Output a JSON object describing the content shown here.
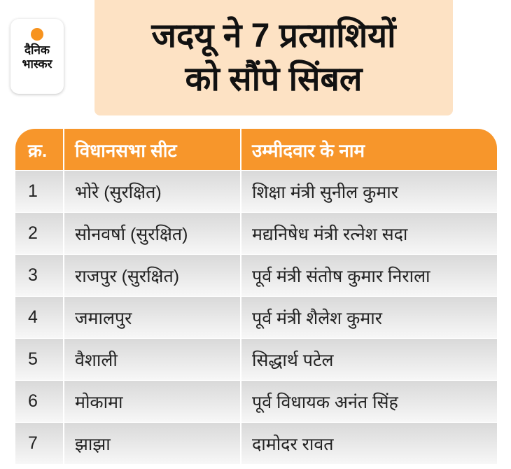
{
  "logo": {
    "line1": "दैनिक",
    "line2": "भास्कर"
  },
  "title": {
    "line1": "जदयू ने 7 प्रत्याशियों",
    "line2": "को सौंपे सिंबल"
  },
  "table": {
    "headers": [
      "क्र.",
      "विधानसभा सीट",
      "उम्मीदवार के नाम"
    ],
    "rows": [
      [
        "1",
        "भोरे (सुरक्षित)",
        "शिक्षा मंत्री सुनील कुमार"
      ],
      [
        "2",
        "सोनवर्षा (सुरक्षित)",
        "मद्यनिषेध मंत्री रत्नेश सदा"
      ],
      [
        "3",
        "राजपुर (सुरक्षित)",
        "पूर्व मंत्री संतोष कुमार निराला"
      ],
      [
        "4",
        "जमालपुर",
        "पूर्व मंत्री शैलेश कुमार"
      ],
      [
        "5",
        "वैशाली",
        "सिद्धार्थ पटेल"
      ],
      [
        "6",
        "मोकामा",
        "पूर्व विधायक अनंत सिंह"
      ],
      [
        "7",
        "झाझा",
        "दामोदर रावत"
      ]
    ]
  },
  "colors": {
    "header": "#f7962b",
    "title_bg": "#fde2c4"
  }
}
